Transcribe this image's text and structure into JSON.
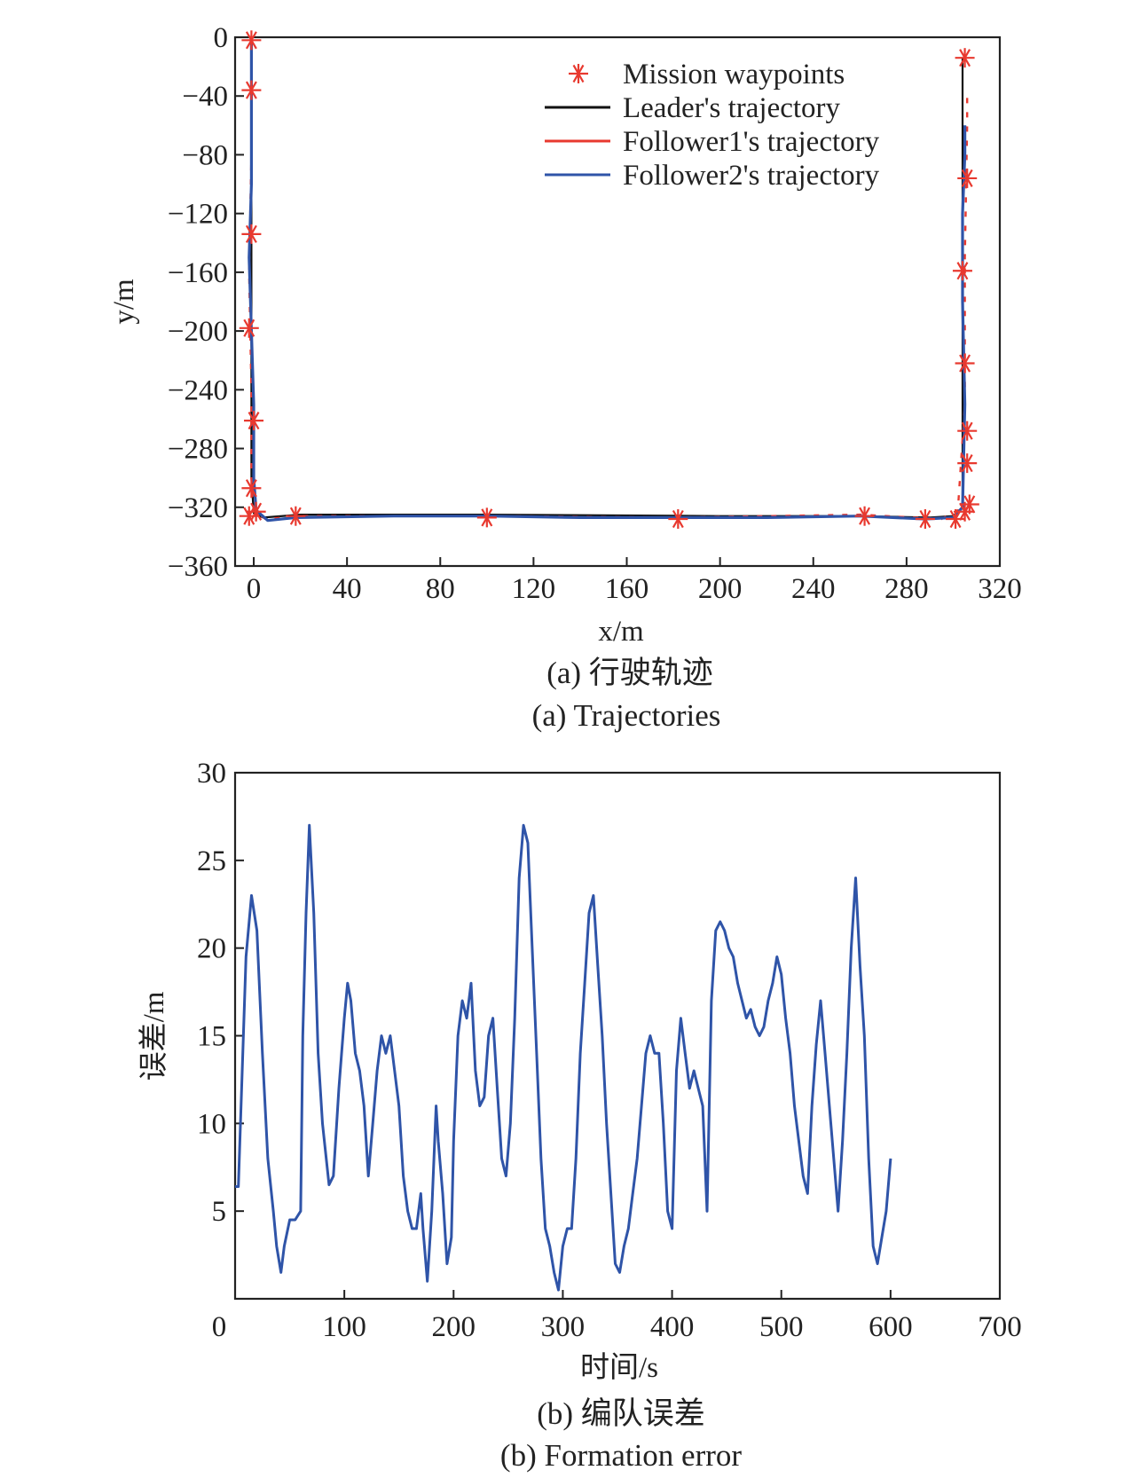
{
  "figure": {
    "panel_a": {
      "caption_cn": "(a) 行驶轨迹",
      "caption_en": "(a) Trajectories"
    },
    "panel_b": {
      "caption_cn": "(b) 编队误差",
      "caption_en": "(b) Formation error"
    }
  },
  "colors": {
    "waypoint": "#e8392f",
    "leader": "#111111",
    "follower1": "#e8392f",
    "follower2": "#2f54a8",
    "error": "#2f54a8"
  },
  "chart_data": [
    {
      "type": "line",
      "xlabel": "x/m",
      "ylabel": "y/m",
      "xlim": [
        -8,
        320
      ],
      "ylim": [
        -360,
        0
      ],
      "xticks": [
        0,
        40,
        80,
        120,
        160,
        200,
        240,
        280,
        320
      ],
      "yticks": [
        0,
        -40,
        -80,
        -120,
        -160,
        -200,
        -240,
        -280,
        -320,
        -360
      ],
      "legend_position": "top-right",
      "series": [
        {
          "name": "Mission waypoints",
          "marker": "asterisk",
          "points": [
            [
              -1,
              -2
            ],
            [
              -1,
              -36
            ],
            [
              -1,
              -134
            ],
            [
              -2,
              -198
            ],
            [
              0,
              -261
            ],
            [
              -1,
              -307
            ],
            [
              1,
              -323
            ],
            [
              -2,
              -326
            ],
            [
              18,
              -326
            ],
            [
              100,
              -327
            ],
            [
              182,
              -328
            ],
            [
              262,
              -326
            ],
            [
              288,
              -328
            ],
            [
              301,
              -328
            ],
            [
              305,
              -323
            ],
            [
              307,
              -318
            ],
            [
              306,
              -290
            ],
            [
              306,
              -268
            ],
            [
              305,
              -222
            ],
            [
              304,
              -159
            ],
            [
              306,
              -96
            ],
            [
              305,
              -14
            ]
          ]
        },
        {
          "name": "Leader's trajectory",
          "points": [
            [
              -1,
              0
            ],
            [
              -1,
              -100
            ],
            [
              -1,
              -200
            ],
            [
              -1,
              -300
            ],
            [
              0,
              -324
            ],
            [
              4,
              -327
            ],
            [
              20,
              -325
            ],
            [
              100,
              -325
            ],
            [
              200,
              -326
            ],
            [
              260,
              -326
            ],
            [
              290,
              -327
            ],
            [
              300,
              -326
            ],
            [
              304,
              -320
            ],
            [
              304,
              -200
            ],
            [
              304,
              -100
            ],
            [
              304,
              -20
            ],
            [
              304,
              -14
            ]
          ]
        },
        {
          "name": "Follower1's trajectory",
          "points": [
            [
              -1,
              0
            ],
            [
              -1,
              -80
            ],
            [
              -2,
              -160
            ],
            [
              -1,
              -240
            ],
            [
              -1,
              -300
            ],
            [
              0,
              -322
            ],
            [
              5,
              -328
            ],
            [
              20,
              -326
            ],
            [
              100,
              -326
            ],
            [
              180,
              -327
            ],
            [
              260,
              -325
            ],
            [
              295,
              -328
            ],
            [
              302,
              -322
            ],
            [
              305,
              -250
            ],
            [
              305,
              -150
            ],
            [
              306,
              -60
            ],
            [
              306,
              -40
            ]
          ]
        },
        {
          "name": "Follower2's trajectory",
          "points": [
            [
              -1,
              0
            ],
            [
              -1,
              -50
            ],
            [
              -1,
              -100
            ],
            [
              -2,
              -150
            ],
            [
              -1,
              -200
            ],
            [
              0,
              -250
            ],
            [
              0,
              -300
            ],
            [
              1,
              -322
            ],
            [
              6,
              -329
            ],
            [
              18,
              -327
            ],
            [
              60,
              -326
            ],
            [
              100,
              -326
            ],
            [
              140,
              -327
            ],
            [
              180,
              -327
            ],
            [
              220,
              -327
            ],
            [
              260,
              -326
            ],
            [
              288,
              -328
            ],
            [
              300,
              -327
            ],
            [
              304,
              -320
            ],
            [
              305,
              -250
            ],
            [
              304,
              -180
            ],
            [
              304,
              -120
            ],
            [
              305,
              -80
            ],
            [
              305,
              -60
            ]
          ]
        }
      ]
    },
    {
      "type": "line",
      "xlabel": "时间/s",
      "ylabel": "误差/m",
      "xlim": [
        0,
        700
      ],
      "ylim": [
        0,
        30
      ],
      "xticks": [
        0,
        100,
        200,
        300,
        400,
        500,
        600,
        700
      ],
      "yticks": [
        5,
        10,
        15,
        20,
        25,
        30
      ],
      "series": [
        {
          "name": "",
          "x": [
            0,
            3,
            10,
            15,
            20,
            25,
            30,
            35,
            38,
            42,
            45,
            50,
            55,
            60,
            62,
            65,
            68,
            72,
            76,
            80,
            86,
            90,
            95,
            100,
            103,
            106,
            110,
            114,
            118,
            122,
            126,
            130,
            134,
            138,
            142,
            146,
            150,
            154,
            158,
            162,
            166,
            170,
            172,
            176,
            180,
            184,
            186,
            190,
            194,
            198,
            200,
            204,
            208,
            212,
            216,
            220,
            224,
            228,
            232,
            236,
            240,
            244,
            248,
            252,
            256,
            260,
            264,
            268,
            272,
            276,
            280,
            284,
            288,
            292,
            296,
            300,
            304,
            308,
            312,
            316,
            320,
            324,
            328,
            332,
            336,
            340,
            344,
            348,
            352,
            356,
            360,
            364,
            368,
            372,
            376,
            380,
            384,
            388,
            392,
            396,
            400,
            404,
            408,
            412,
            416,
            420,
            424,
            428,
            432,
            436,
            440,
            444,
            448,
            452,
            456,
            460,
            464,
            468,
            472,
            476,
            480,
            484,
            488,
            492,
            496,
            500,
            504,
            508,
            512,
            516,
            520,
            524,
            528,
            532,
            536,
            540,
            544,
            548,
            552,
            556,
            560,
            564,
            568,
            572,
            576,
            580,
            584,
            588,
            592,
            596,
            600
          ],
          "y": [
            6.4,
            6.4,
            19.5,
            23,
            21,
            14,
            8,
            5,
            3,
            1.5,
            3,
            4.5,
            4.5,
            5,
            15,
            22,
            27,
            22,
            14,
            10,
            6.5,
            7,
            12,
            16,
            18,
            17,
            14,
            13,
            11,
            7,
            10,
            13,
            15,
            14,
            15,
            13,
            11,
            7,
            5,
            4,
            4,
            6,
            4,
            1,
            5,
            11,
            9,
            6,
            2,
            3.5,
            9,
            15,
            17,
            16,
            18,
            13,
            11,
            11.5,
            15,
            16,
            12,
            8,
            7,
            10,
            16,
            24,
            27,
            26,
            20,
            14,
            8,
            4,
            3,
            1.5,
            0.5,
            3,
            4,
            4,
            8,
            14,
            18,
            22,
            23,
            19,
            15,
            10,
            6,
            2,
            1.5,
            3,
            4,
            6,
            8,
            11,
            14,
            15,
            14,
            14,
            10,
            5,
            4,
            13,
            16,
            14,
            12,
            13,
            12,
            11,
            5,
            17,
            21,
            21.5,
            21,
            20,
            19.5,
            18,
            17,
            16,
            16.5,
            15.5,
            15,
            15.5,
            17,
            18,
            19.5,
            18.5,
            16,
            14,
            11,
            9,
            7,
            6,
            11,
            14.5,
            17,
            14,
            11,
            8,
            5,
            9,
            14,
            20,
            24,
            19,
            15,
            8,
            3,
            2,
            3.5,
            5,
            8
          ]
        }
      ]
    }
  ]
}
